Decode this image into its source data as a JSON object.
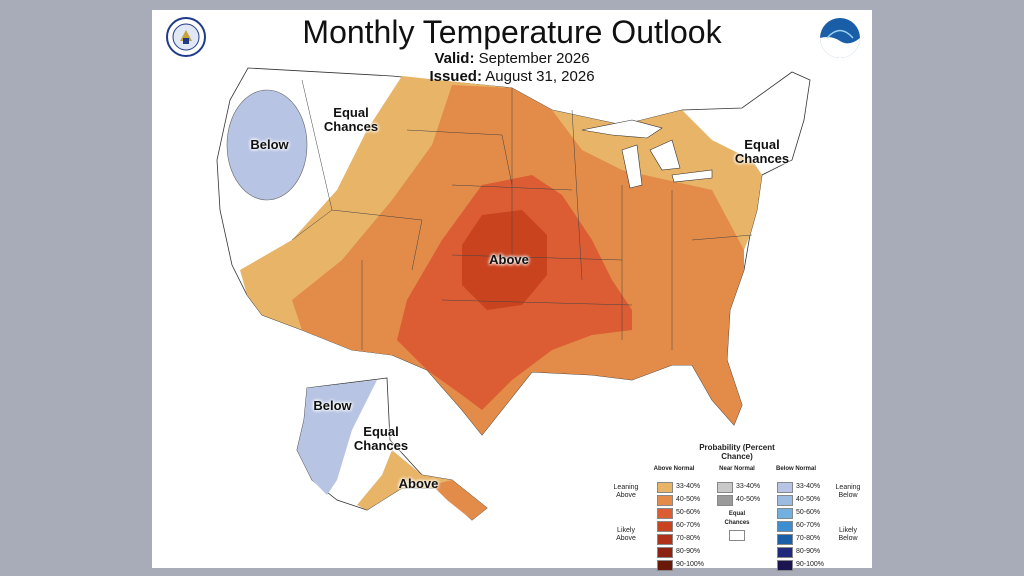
{
  "title": "Monthly Temperature Outlook",
  "valid_label": "Valid:",
  "valid_value": "September 2026",
  "issued_label": "Issued:",
  "issued_value": "August 31, 2026",
  "map_labels": {
    "below_west": "Below",
    "equal_chances_west": "Equal Chances",
    "above_central": "Above",
    "equal_chances_east": "Equal Chances",
    "alaska_below": "Below",
    "alaska_equal_chances": "Equal Chances",
    "alaska_above": "Above"
  },
  "legend": {
    "heading": "Probability (Percent Chance)",
    "above_header": "Above Normal",
    "near_header": "Near Normal",
    "below_header": "Below Normal",
    "leaning_above": "Leaning Above",
    "likely_above": "Likely Above",
    "leaning_below": "Leaning Below",
    "likely_below": "Likely Below",
    "equal_chances": "Equal Chances",
    "above_rows": [
      {
        "label": "33-40%",
        "color": "#e8b468"
      },
      {
        "label": "40-50%",
        "color": "#e38b48"
      },
      {
        "label": "50-60%",
        "color": "#dc5c34"
      },
      {
        "label": "60-70%",
        "color": "#c9431f"
      },
      {
        "label": "70-80%",
        "color": "#b0301a"
      },
      {
        "label": "80-90%",
        "color": "#8c2212"
      },
      {
        "label": "90-100%",
        "color": "#6a1808"
      }
    ],
    "near_rows": [
      {
        "label": "33-40%",
        "color": "#c8c8c8"
      },
      {
        "label": "40-50%",
        "color": "#9a9a9a"
      }
    ],
    "below_rows": [
      {
        "label": "33-40%",
        "color": "#b8c4e4"
      },
      {
        "label": "40-50%",
        "color": "#9bbbe0"
      },
      {
        "label": "50-60%",
        "color": "#72b0e0"
      },
      {
        "label": "60-70%",
        "color": "#3c8ed0"
      },
      {
        "label": "70-80%",
        "color": "#1a5ea8"
      },
      {
        "label": "80-90%",
        "color": "#202a7a"
      },
      {
        "label": "90-100%",
        "color": "#1a1450"
      }
    ]
  }
}
